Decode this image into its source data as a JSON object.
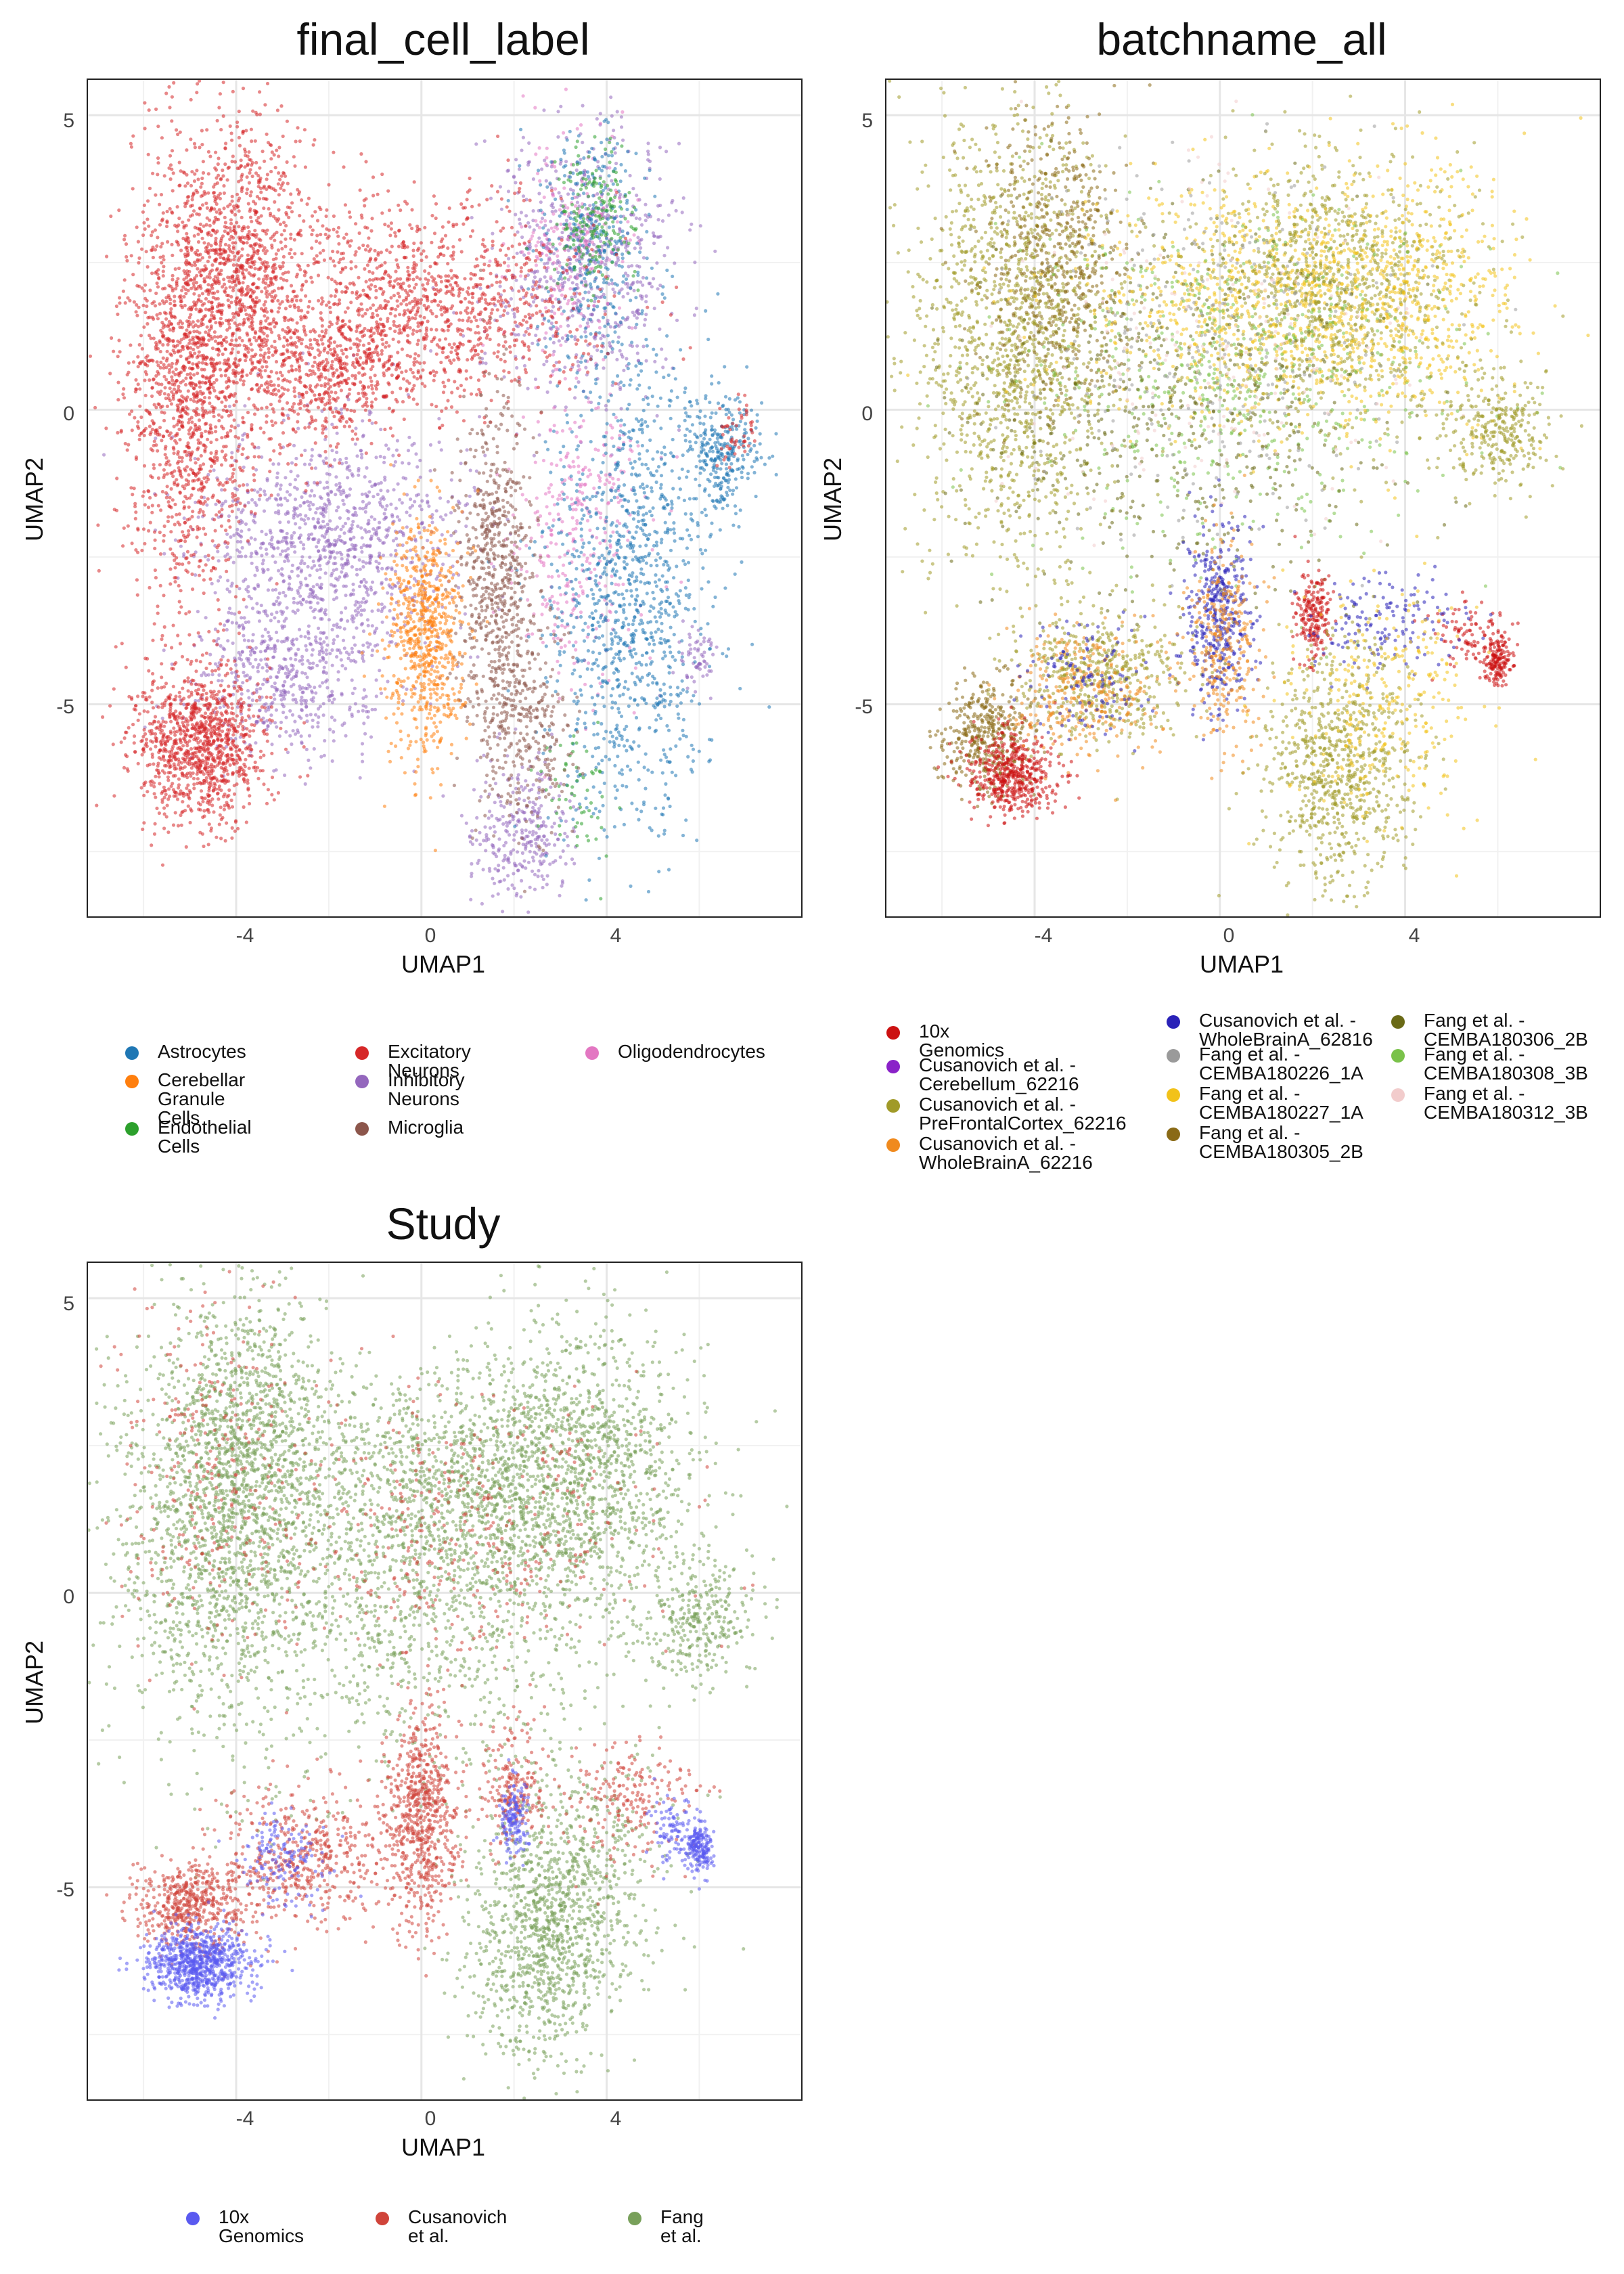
{
  "chart_data": [
    {
      "type": "scatter",
      "title": "final_cell_label",
      "xlabel": "UMAP1",
      "ylabel": "UMAP2",
      "xlim": [
        -7.2,
        8.2
      ],
      "ylim": [
        -8.6,
        5.6
      ],
      "x_ticks": [
        "-4",
        "0",
        "4"
      ],
      "x_tick_values": [
        -4,
        0,
        4
      ],
      "y_ticks": [
        "5",
        "0",
        "-5"
      ],
      "y_tick_values": [
        5,
        0,
        -5
      ],
      "grid": true,
      "legend_position": "bottom",
      "series": [
        {
          "name": "Astrocytes",
          "color": "#1f77b4"
        },
        {
          "name": "Cerebellar Granule Cells",
          "color": "#ff7f0e"
        },
        {
          "name": "Endothelial Cells",
          "color": "#2ca02c"
        },
        {
          "name": "Excitatory Neurons",
          "color": "#d62728"
        },
        {
          "name": "Inhibitory Neurons",
          "color": "#9467bd"
        },
        {
          "name": "Microglia",
          "color": "#8c564b"
        },
        {
          "name": "Oligodendrocytes",
          "color": "#e377c2"
        }
      ]
    },
    {
      "type": "scatter",
      "title": "batchname_all",
      "xlabel": "UMAP1",
      "ylabel": "UMAP2",
      "xlim": [
        -7.2,
        8.2
      ],
      "ylim": [
        -8.6,
        5.6
      ],
      "x_ticks": [
        "-4",
        "0",
        "4"
      ],
      "x_tick_values": [
        -4,
        0,
        4
      ],
      "y_ticks": [
        "5",
        "0",
        "-5"
      ],
      "y_tick_values": [
        5,
        0,
        -5
      ],
      "grid": true,
      "legend_position": "bottom",
      "series": [
        {
          "name": "10x Genomics",
          "color": "#cc1111"
        },
        {
          "name": "Cusanovich et al. - Cerebellum_62216",
          "color": "#8a22c8"
        },
        {
          "name": "Cusanovich et al. - PreFrontalCortex_62216",
          "color": "#a09a28"
        },
        {
          "name": "Cusanovich et al. - WholeBrainA_62216",
          "color": "#f08a1e"
        },
        {
          "name": "Cusanovich et al. - WholeBrainA_62816",
          "color": "#2a22b8"
        },
        {
          "name": "Fang et al. - CEMBA180226_1A",
          "color": "#9a9a9a"
        },
        {
          "name": "Fang et al. - CEMBA180227_1A",
          "color": "#f2c21a"
        },
        {
          "name": "Fang et al. - CEMBA180305_2B",
          "color": "#8a6a16"
        },
        {
          "name": "Fang et al. - CEMBA180306_2B",
          "color": "#6a6a16"
        },
        {
          "name": "Fang et al. - CEMBA180308_3B",
          "color": "#7ac24a"
        },
        {
          "name": "Fang et al. - CEMBA180312_3B",
          "color": "#f2cccc"
        }
      ]
    },
    {
      "type": "scatter",
      "title": "Study",
      "xlabel": "UMAP1",
      "ylabel": "UMAP2",
      "xlim": [
        -7.2,
        8.2
      ],
      "ylim": [
        -8.6,
        5.6
      ],
      "x_ticks": [
        "-4",
        "0",
        "4"
      ],
      "x_tick_values": [
        -4,
        0,
        4
      ],
      "y_ticks": [
        "5",
        "0",
        "-5"
      ],
      "y_tick_values": [
        5,
        0,
        -5
      ],
      "grid": true,
      "legend_position": "bottom",
      "series": [
        {
          "name": "10x Genomics",
          "color": "#5a5af0"
        },
        {
          "name": "Cusanovich et al.",
          "color": "#d0443a"
        },
        {
          "name": "Fang et al.",
          "color": "#78a05a"
        }
      ]
    }
  ],
  "legends": [
    [
      {
        "label": "Astrocytes",
        "color": "#1f77b4"
      },
      {
        "label": "Cerebellar Granule\nCells",
        "color": "#ff7f0e"
      },
      {
        "label": "Endothelial Cells",
        "color": "#2ca02c"
      },
      {
        "label": "Excitatory Neurons",
        "color": "#d62728"
      },
      {
        "label": "Inhibitory Neurons",
        "color": "#9467bd"
      },
      {
        "label": "Microglia",
        "color": "#8c564b"
      },
      {
        "label": "Oligodendrocytes",
        "color": "#e377c2"
      }
    ],
    [
      {
        "label": "10x Genomics",
        "color": "#cc1111"
      },
      {
        "label": "Cusanovich et al. -\nCerebellum_62216",
        "color": "#8a22c8"
      },
      {
        "label": "Cusanovich et al. -\nPreFrontalCortex_62216",
        "color": "#a09a28"
      },
      {
        "label": "Cusanovich et al. -\nWholeBrainA_62216",
        "color": "#f08a1e"
      },
      {
        "label": "Cusanovich et al. -\nWholeBrainA_62816",
        "color": "#2a22b8"
      },
      {
        "label": "Fang et al. -\nCEMBA180226_1A",
        "color": "#9a9a9a"
      },
      {
        "label": "Fang et al. -\nCEMBA180227_1A",
        "color": "#f2c21a"
      },
      {
        "label": "Fang et al. -\nCEMBA180305_2B",
        "color": "#8a6a16"
      },
      {
        "label": "Fang et al. -\nCEMBA180306_2B",
        "color": "#6a6a16"
      },
      {
        "label": "Fang et al. -\nCEMBA180308_3B",
        "color": "#7ac24a"
      },
      {
        "label": "Fang et al. -\nCEMBA180312_3B",
        "color": "#f2cccc"
      }
    ],
    [
      {
        "label": "10x Genomics",
        "color": "#5a5af0"
      },
      {
        "label": "Cusanovich et al.",
        "color": "#d0443a"
      },
      {
        "label": "Fang et al.",
        "color": "#78a05a"
      }
    ]
  ]
}
